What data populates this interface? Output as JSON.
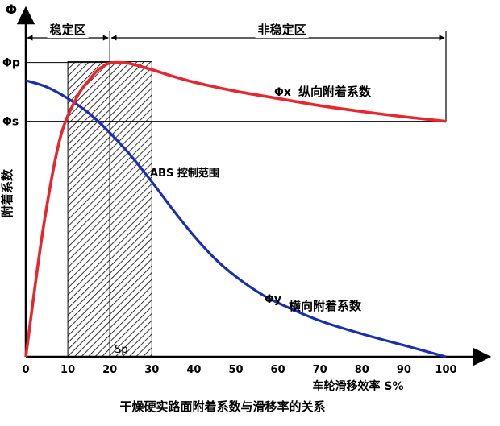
{
  "chart_data": {
    "type": "line",
    "title": "干燥硬实路面附着系数与滑移率的关系",
    "xlabel": "车轮滑移效率 S%",
    "ylabel": "附着系数",
    "y_axis_symbol": "Φ",
    "xlim": [
      0,
      100
    ],
    "x_ticks": [
      "0",
      "10",
      "20",
      "30",
      "40",
      "50",
      "60",
      "70",
      "80",
      "90",
      "100"
    ],
    "ylim": [
      0,
      1
    ],
    "grid": false,
    "y_markers": [
      {
        "label": "Φp",
        "value": 0.9
      },
      {
        "label": "Φs",
        "value": 0.72
      }
    ],
    "regions": [
      {
        "label": "稳定区",
        "from": 0,
        "to": 20
      },
      {
        "label": "非稳定区",
        "from": 20,
        "to": 100
      }
    ],
    "shaded_band": {
      "label": "ABS 控制范围",
      "from": 10,
      "to": 30
    },
    "sp_marker": {
      "label": "Sp",
      "x": 20
    },
    "series": [
      {
        "name": "Φx 纵向附着系数",
        "symbol": "Φx",
        "label": "纵向附着系数",
        "color": "#e8262e",
        "x": [
          0,
          4,
          8,
          12,
          15,
          17,
          19,
          20,
          22,
          25,
          30,
          35,
          40,
          50,
          60,
          70,
          80,
          90,
          100
        ],
        "y": [
          0.0,
          0.38,
          0.66,
          0.79,
          0.845,
          0.875,
          0.893,
          0.898,
          0.9,
          0.896,
          0.878,
          0.858,
          0.84,
          0.812,
          0.79,
          0.768,
          0.75,
          0.734,
          0.72
        ]
      },
      {
        "name": "Φy 横向附着系数",
        "symbol": "Φy",
        "label": "横向附着系数",
        "color": "#1a2fb0",
        "x": [
          0,
          5,
          10,
          15,
          20,
          25,
          30,
          35,
          40,
          45,
          50,
          55,
          60,
          70,
          80,
          90,
          100
        ],
        "y": [
          0.845,
          0.825,
          0.79,
          0.745,
          0.685,
          0.615,
          0.535,
          0.45,
          0.37,
          0.3,
          0.245,
          0.2,
          0.165,
          0.11,
          0.07,
          0.035,
          0.0
        ]
      }
    ]
  }
}
